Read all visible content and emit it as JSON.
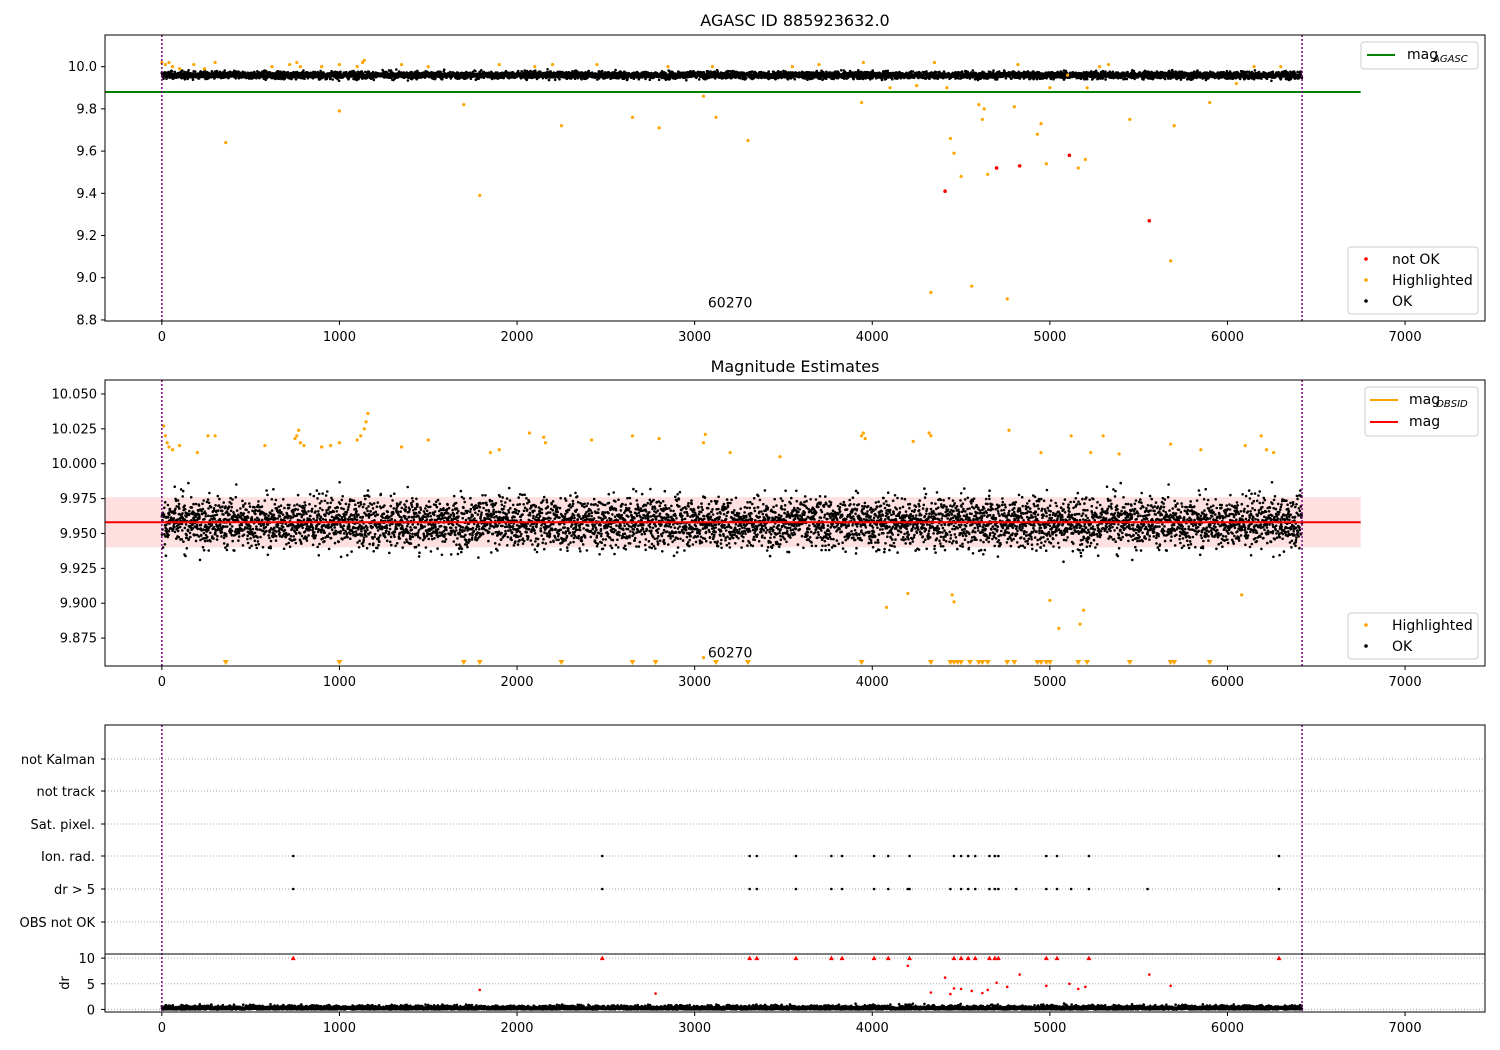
{
  "chart_data": [
    {
      "type": "scatter",
      "title": "AGASC ID 885923632.0",
      "xticks": [
        0,
        1000,
        2000,
        3000,
        4000,
        5000,
        6000,
        7000
      ],
      "yticks": [
        8.8,
        9.0,
        9.2,
        9.4,
        9.6,
        9.8,
        10.0
      ],
      "xlim": [
        -320,
        7450
      ],
      "ylim": [
        8.795,
        10.15
      ],
      "vlines": [
        0,
        6420
      ],
      "hline": {
        "name": "mag_AGASC",
        "value": 9.88,
        "x_range": [
          -320,
          6750
        ],
        "color": "#008000"
      },
      "annotation": {
        "text": "60270",
        "x": 3200,
        "y": 8.86
      },
      "legend_upper": [
        {
          "label": "mag",
          "sub": "AGASC",
          "color": "#008000"
        }
      ],
      "legend_lower": [
        {
          "label": "not OK",
          "color": "#ff0000"
        },
        {
          "label": "Highlighted",
          "color": "#ffa500"
        },
        {
          "label": "OK",
          "color": "#000000"
        }
      ],
      "ok_band": {
        "name": "OK",
        "x_range": [
          0,
          6420
        ],
        "center": 9.96,
        "halfwidth": 0.03,
        "approx_count": 6400
      },
      "highlighted_points": [
        [
          0,
          10.02
        ],
        [
          20,
          10.01
        ],
        [
          40,
          10.02
        ],
        [
          60,
          10.0
        ],
        [
          100,
          9.99
        ],
        [
          180,
          10.01
        ],
        [
          240,
          9.99
        ],
        [
          300,
          10.02
        ],
        [
          360,
          9.64
        ],
        [
          620,
          10.0
        ],
        [
          720,
          10.01
        ],
        [
          760,
          10.02
        ],
        [
          780,
          10.0
        ],
        [
          900,
          10.0
        ],
        [
          1000,
          9.79
        ],
        [
          1000,
          10.01
        ],
        [
          1100,
          10.0
        ],
        [
          1130,
          10.02
        ],
        [
          1140,
          10.03
        ],
        [
          1350,
          10.01
        ],
        [
          1500,
          10.0
        ],
        [
          1700,
          9.82
        ],
        [
          1790,
          9.39
        ],
        [
          1900,
          10.01
        ],
        [
          2100,
          10.0
        ],
        [
          2200,
          10.01
        ],
        [
          2250,
          9.72
        ],
        [
          2450,
          10.01
        ],
        [
          2650,
          9.76
        ],
        [
          2800,
          9.71
        ],
        [
          2850,
          10.0
        ],
        [
          3050,
          9.86
        ],
        [
          3100,
          10.0
        ],
        [
          3120,
          9.76
        ],
        [
          3300,
          9.65
        ],
        [
          3550,
          10.0
        ],
        [
          3700,
          10.01
        ],
        [
          3940,
          9.83
        ],
        [
          3950,
          10.02
        ],
        [
          4100,
          9.9
        ],
        [
          4250,
          9.91
        ],
        [
          4330,
          8.93
        ],
        [
          4350,
          10.02
        ],
        [
          4420,
          9.9
        ],
        [
          4440,
          9.66
        ],
        [
          4460,
          9.59
        ],
        [
          4500,
          9.48
        ],
        [
          4560,
          8.96
        ],
        [
          4600,
          9.82
        ],
        [
          4620,
          9.75
        ],
        [
          4630,
          9.8
        ],
        [
          4650,
          9.49
        ],
        [
          4760,
          8.9
        ],
        [
          4800,
          9.81
        ],
        [
          4820,
          10.01
        ],
        [
          4930,
          9.68
        ],
        [
          4950,
          9.73
        ],
        [
          4980,
          9.54
        ],
        [
          5000,
          9.9
        ],
        [
          5100,
          9.96
        ],
        [
          5160,
          9.52
        ],
        [
          5200,
          9.56
        ],
        [
          5210,
          9.9
        ],
        [
          5280,
          10.0
        ],
        [
          5330,
          10.01
        ],
        [
          5450,
          9.75
        ],
        [
          5680,
          9.08
        ],
        [
          5700,
          9.72
        ],
        [
          5900,
          9.83
        ],
        [
          6050,
          9.92
        ],
        [
          6150,
          10.0
        ],
        [
          6300,
          10.0
        ]
      ],
      "not_ok_points": [
        [
          4410,
          9.41
        ],
        [
          4700,
          9.52
        ],
        [
          4830,
          9.53
        ],
        [
          5110,
          9.58
        ],
        [
          5560,
          9.27
        ]
      ]
    },
    {
      "type": "scatter",
      "title": "Magnitude Estimates",
      "xticks": [
        0,
        1000,
        2000,
        3000,
        4000,
        5000,
        6000,
        7000
      ],
      "yticks": [
        9.875,
        9.9,
        9.925,
        9.95,
        9.975,
        10.0,
        10.025,
        10.05
      ],
      "xlim": [
        -320,
        7450
      ],
      "ylim": [
        9.855,
        10.06
      ],
      "vlines": [
        0,
        6420
      ],
      "band": {
        "low": 9.94,
        "high": 9.976,
        "x_range": [
          -320,
          6750
        ],
        "color": "#ff0000",
        "alpha": 0.12
      },
      "mag_line": {
        "name": "mag",
        "value": 9.958,
        "x_range": [
          -320,
          6750
        ],
        "color": "#ff0000"
      },
      "mag_obsid": {
        "name": "mag_OBSID",
        "value": 9.958,
        "x_range": [
          0,
          6420
        ],
        "color": "#ffa500"
      },
      "annotation": {
        "text": "60270",
        "x": 3200,
        "y": 9.861
      },
      "legend_upper": [
        {
          "label": "mag",
          "sub": "OBSID",
          "color": "#ffa500"
        },
        {
          "label": "mag",
          "sub": "",
          "color": "#ff0000"
        }
      ],
      "legend_lower": [
        {
          "label": "Highlighted",
          "color": "#ffa500"
        },
        {
          "label": "OK",
          "color": "#000000"
        }
      ],
      "ok_cloud": {
        "name": "OK",
        "x_range": [
          0,
          6420
        ],
        "center": 9.958,
        "sigma": 0.014,
        "approx_count": 6400
      },
      "highlighted_points": [
        [
          10,
          10.027
        ],
        [
          20,
          10.02
        ],
        [
          30,
          10.015
        ],
        [
          40,
          10.012
        ],
        [
          60,
          10.01
        ],
        [
          100,
          10.013
        ],
        [
          200,
          10.008
        ],
        [
          260,
          10.02
        ],
        [
          300,
          10.02
        ],
        [
          580,
          10.013
        ],
        [
          750,
          10.018
        ],
        [
          760,
          10.02
        ],
        [
          770,
          10.024
        ],
        [
          780,
          10.015
        ],
        [
          800,
          10.013
        ],
        [
          900,
          10.012
        ],
        [
          950,
          10.013
        ],
        [
          1000,
          10.015
        ],
        [
          1100,
          10.017
        ],
        [
          1120,
          10.02
        ],
        [
          1140,
          10.025
        ],
        [
          1150,
          10.03
        ],
        [
          1160,
          10.036
        ],
        [
          1350,
          10.012
        ],
        [
          1500,
          10.017
        ],
        [
          1850,
          10.008
        ],
        [
          1900,
          10.01
        ],
        [
          2070,
          10.022
        ],
        [
          2150,
          10.019
        ],
        [
          2160,
          10.015
        ],
        [
          2420,
          10.017
        ],
        [
          2650,
          10.02
        ],
        [
          2800,
          10.018
        ],
        [
          3050,
          10.015
        ],
        [
          3060,
          10.021
        ],
        [
          3200,
          10.008
        ],
        [
          3480,
          10.005
        ],
        [
          3940,
          10.02
        ],
        [
          3950,
          10.022
        ],
        [
          3960,
          10.018
        ],
        [
          4080,
          9.897
        ],
        [
          4200,
          9.907
        ],
        [
          4230,
          10.016
        ],
        [
          4320,
          10.022
        ],
        [
          4330,
          10.02
        ],
        [
          4450,
          9.906
        ],
        [
          4460,
          9.901
        ],
        [
          4770,
          10.024
        ],
        [
          4950,
          10.008
        ],
        [
          5000,
          9.902
        ],
        [
          5050,
          9.882
        ],
        [
          5120,
          10.02
        ],
        [
          5170,
          9.885
        ],
        [
          5190,
          9.895
        ],
        [
          5230,
          10.008
        ],
        [
          5300,
          10.02
        ],
        [
          5390,
          10.007
        ],
        [
          5680,
          10.014
        ],
        [
          5850,
          10.01
        ],
        [
          6080,
          9.906
        ],
        [
          6100,
          10.013
        ],
        [
          6190,
          10.02
        ],
        [
          6220,
          10.01
        ],
        [
          6260,
          10.008
        ],
        [
          3050,
          9.861
        ]
      ],
      "floor_markers": [
        360,
        1000,
        1700,
        1790,
        2250,
        2650,
        2780,
        3120,
        3300,
        3940,
        4330,
        4440,
        4460,
        4480,
        4500,
        4550,
        4600,
        4620,
        4650,
        4760,
        4800,
        4930,
        4950,
        4980,
        5000,
        5160,
        5210,
        5450,
        5680,
        5700,
        5900
      ]
    },
    {
      "type": "scatter",
      "xticks": [
        0,
        1000,
        2000,
        3000,
        4000,
        5000,
        6000,
        7000
      ],
      "xlim": [
        -320,
        7450
      ],
      "vlines": [
        0,
        6420
      ],
      "flag_rows": [
        "not Kalman",
        "not track",
        "Sat. pixel.",
        "Ion. rad.",
        "dr > 5",
        "OBS not OK"
      ],
      "flag_points": {
        "Ion. rad.": [
          740,
          2480,
          3310,
          3350,
          3570,
          3770,
          3830,
          4010,
          4090,
          4210,
          4460,
          4500,
          4540,
          4580,
          4660,
          4690,
          4710,
          4980,
          5040,
          5220,
          6290
        ],
        "dr > 5": [
          740,
          2480,
          3310,
          3350,
          3570,
          3770,
          3830,
          4010,
          4090,
          4200,
          4210,
          4440,
          4500,
          4540,
          4580,
          4660,
          4690,
          4710,
          4810,
          4980,
          5040,
          5120,
          5220,
          5550,
          6290
        ]
      },
      "dr_ylabel": "dr",
      "dr_yticks": [
        0,
        5,
        10
      ],
      "dr_ylim": [
        -0.5,
        10.8
      ],
      "dr_capped": [
        740,
        2480,
        3310,
        3350,
        3570,
        3770,
        3830,
        4010,
        4090,
        4210,
        4460,
        4500,
        4540,
        4580,
        4660,
        4690,
        4710,
        4980,
        5040,
        5220,
        6290
      ],
      "dr_red_points": [
        [
          1790,
          3.8
        ],
        [
          2780,
          3.1
        ],
        [
          4200,
          8.5
        ],
        [
          4330,
          3.3
        ],
        [
          4410,
          6.2
        ],
        [
          4440,
          3.0
        ],
        [
          4460,
          4.1
        ],
        [
          4500,
          4.0
        ],
        [
          4560,
          3.6
        ],
        [
          4620,
          3.2
        ],
        [
          4650,
          3.8
        ],
        [
          4700,
          5.2
        ],
        [
          4760,
          4.4
        ],
        [
          4830,
          6.8
        ],
        [
          4980,
          4.6
        ],
        [
          5110,
          5.0
        ],
        [
          5160,
          4.0
        ],
        [
          5200,
          4.4
        ],
        [
          5560,
          6.8
        ],
        [
          5680,
          4.6
        ]
      ],
      "dr_ok": {
        "name": "OK",
        "x_range": [
          0,
          6420
        ],
        "typical_max": 2.5
      }
    }
  ]
}
